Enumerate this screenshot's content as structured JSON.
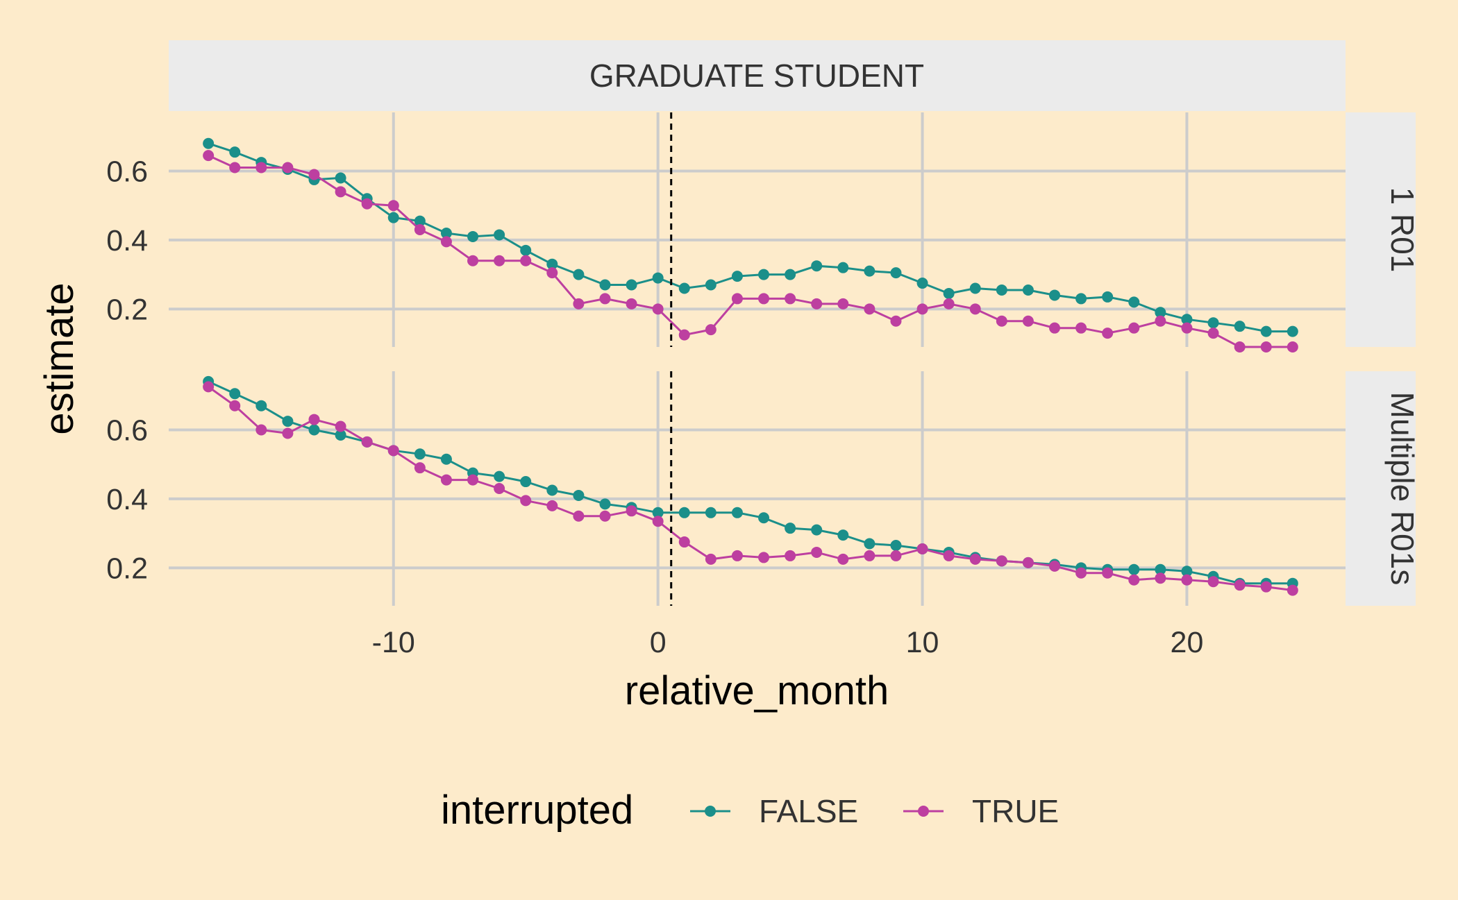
{
  "chart_data": {
    "type": "line",
    "column_strip": "GRADUATE STUDENT",
    "xlabel": "relative_month",
    "ylabel": "estimate",
    "x_ticks": [
      -10,
      0,
      10,
      20
    ],
    "y_ticks": [
      0.2,
      0.4,
      0.6
    ],
    "x_range": [
      -18.5,
      26
    ],
    "grid": true,
    "vline_x": 0.5,
    "legend": {
      "title": "interrupted",
      "position": "bottom",
      "entries": [
        {
          "label": "FALSE",
          "color": "#1b8f8a"
        },
        {
          "label": "TRUE",
          "color": "#bd3fa0"
        }
      ]
    },
    "x": [
      -17,
      -16,
      -15,
      -14,
      -13,
      -12,
      -11,
      -10,
      -9,
      -8,
      -7,
      -6,
      -5,
      -4,
      -3,
      -2,
      -1,
      0,
      1,
      2,
      3,
      4,
      5,
      6,
      7,
      8,
      9,
      10,
      11,
      12,
      13,
      14,
      15,
      16,
      17,
      18,
      19,
      20,
      21,
      22,
      23,
      24
    ],
    "panels": [
      {
        "strip": "1 R01",
        "ylim": [
          0.09,
          0.77
        ],
        "series": [
          {
            "name": "FALSE",
            "color": "#1b8f8a",
            "values": [
              0.68,
              0.655,
              0.625,
              0.605,
              0.575,
              0.58,
              0.52,
              0.465,
              0.455,
              0.42,
              0.41,
              0.415,
              0.37,
              0.33,
              0.3,
              0.27,
              0.27,
              0.29,
              0.26,
              0.27,
              0.295,
              0.3,
              0.3,
              0.325,
              0.32,
              0.31,
              0.305,
              0.275,
              0.245,
              0.26,
              0.255,
              0.255,
              0.24,
              0.23,
              0.235,
              0.22,
              0.19,
              0.17,
              0.16,
              0.15,
              0.135,
              0.135
            ]
          },
          {
            "name": "TRUE",
            "color": "#bd3fa0",
            "values": [
              0.645,
              0.61,
              0.61,
              0.61,
              0.59,
              0.54,
              0.505,
              0.5,
              0.43,
              0.395,
              0.34,
              0.34,
              0.34,
              0.305,
              0.215,
              0.23,
              0.215,
              0.2,
              0.125,
              0.14,
              0.23,
              0.23,
              0.23,
              0.215,
              0.215,
              0.2,
              0.165,
              0.2,
              0.215,
              0.2,
              0.165,
              0.165,
              0.145,
              0.145,
              0.13,
              0.145,
              0.165,
              0.145,
              0.13,
              0.09,
              0.09,
              0.09
            ]
          }
        ]
      },
      {
        "strip": "Multiple R01s",
        "ylim": [
          0.09,
          0.77
        ],
        "series": [
          {
            "name": "FALSE",
            "color": "#1b8f8a",
            "values": [
              0.74,
              0.705,
              0.67,
              0.625,
              0.6,
              0.585,
              0.565,
              0.54,
              0.53,
              0.515,
              0.475,
              0.465,
              0.45,
              0.425,
              0.41,
              0.385,
              0.375,
              0.36,
              0.36,
              0.36,
              0.36,
              0.345,
              0.315,
              0.31,
              0.295,
              0.27,
              0.265,
              0.255,
              0.245,
              0.23,
              0.22,
              0.215,
              0.21,
              0.2,
              0.195,
              0.195,
              0.195,
              0.19,
              0.175,
              0.155,
              0.155,
              0.155
            ]
          },
          {
            "name": "TRUE",
            "color": "#bd3fa0",
            "values": [
              0.725,
              0.67,
              0.6,
              0.59,
              0.63,
              0.61,
              0.565,
              0.54,
              0.49,
              0.455,
              0.455,
              0.43,
              0.395,
              0.38,
              0.35,
              0.35,
              0.365,
              0.335,
              0.275,
              0.225,
              0.235,
              0.23,
              0.235,
              0.245,
              0.225,
              0.235,
              0.235,
              0.255,
              0.235,
              0.225,
              0.22,
              0.215,
              0.205,
              0.185,
              0.185,
              0.165,
              0.17,
              0.165,
              0.16,
              0.15,
              0.145,
              0.135
            ]
          }
        ]
      }
    ]
  }
}
